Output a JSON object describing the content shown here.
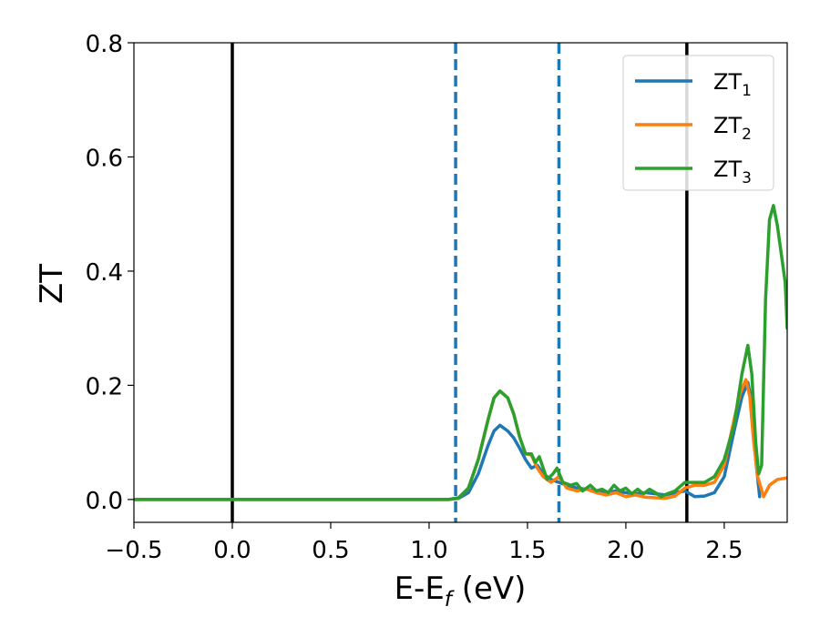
{
  "chart_data": {
    "type": "line",
    "title": "",
    "xlabel": "E-E",
    "xlabel_sub": "f",
    "xlabel_unit": " (eV)",
    "ylabel": "ZT",
    "xlim": [
      -0.5,
      2.82
    ],
    "ylim": [
      -0.04,
      0.8
    ],
    "xticks": [
      -0.5,
      0.0,
      0.5,
      1.0,
      1.5,
      2.0,
      2.5
    ],
    "xtick_labels": [
      "−0.5",
      "0.0",
      "0.5",
      "1.0",
      "1.5",
      "2.0",
      "2.5"
    ],
    "yticks": [
      0.0,
      0.2,
      0.4,
      0.6,
      0.8
    ],
    "ytick_labels": [
      "0.0",
      "0.2",
      "0.4",
      "0.6",
      "0.8"
    ],
    "grid": false,
    "legend_position": "top-right",
    "vertical_lines": [
      {
        "x": 0.0,
        "style": "solid",
        "color": "#000000"
      },
      {
        "x": 2.31,
        "style": "solid",
        "color": "#000000"
      },
      {
        "x": 1.135,
        "style": "dashed",
        "color": "#1f77b4"
      },
      {
        "x": 1.66,
        "style": "dashed",
        "color": "#1f77b4"
      }
    ],
    "series": [
      {
        "name": "ZT",
        "name_sub": "1",
        "color": "#1f77b4",
        "points": [
          [
            -0.5,
            0
          ],
          [
            1.1,
            0
          ],
          [
            1.15,
            0.002
          ],
          [
            1.2,
            0.012
          ],
          [
            1.25,
            0.045
          ],
          [
            1.3,
            0.095
          ],
          [
            1.33,
            0.12
          ],
          [
            1.36,
            0.13
          ],
          [
            1.4,
            0.12
          ],
          [
            1.43,
            0.108
          ],
          [
            1.46,
            0.09
          ],
          [
            1.49,
            0.07
          ],
          [
            1.52,
            0.055
          ],
          [
            1.55,
            0.06
          ],
          [
            1.58,
            0.045
          ],
          [
            1.62,
            0.035
          ],
          [
            1.66,
            0.03
          ],
          [
            1.7,
            0.025
          ],
          [
            1.75,
            0.02
          ],
          [
            1.8,
            0.018
          ],
          [
            1.85,
            0.015
          ],
          [
            1.9,
            0.012
          ],
          [
            1.95,
            0.015
          ],
          [
            2.0,
            0.012
          ],
          [
            2.05,
            0.01
          ],
          [
            2.1,
            0.012
          ],
          [
            2.15,
            0.01
          ],
          [
            2.2,
            0.008
          ],
          [
            2.25,
            0.012
          ],
          [
            2.3,
            0.015
          ],
          [
            2.35,
            0.005
          ],
          [
            2.4,
            0.006
          ],
          [
            2.45,
            0.012
          ],
          [
            2.5,
            0.04
          ],
          [
            2.55,
            0.12
          ],
          [
            2.59,
            0.18
          ],
          [
            2.62,
            0.205
          ],
          [
            2.64,
            0.17
          ],
          [
            2.66,
            0.07
          ],
          [
            2.68,
            0.005
          ]
        ]
      },
      {
        "name": "ZT",
        "name_sub": "2",
        "color": "#ff7f0e",
        "points": [
          [
            -0.5,
            0
          ],
          [
            1.1,
            0
          ],
          [
            1.15,
            0.003
          ],
          [
            1.2,
            0.02
          ],
          [
            1.25,
            0.07
          ],
          [
            1.3,
            0.14
          ],
          [
            1.33,
            0.178
          ],
          [
            1.36,
            0.19
          ],
          [
            1.4,
            0.178
          ],
          [
            1.43,
            0.15
          ],
          [
            1.46,
            0.11
          ],
          [
            1.49,
            0.08
          ],
          [
            1.52,
            0.078
          ],
          [
            1.55,
            0.055
          ],
          [
            1.58,
            0.04
          ],
          [
            1.62,
            0.03
          ],
          [
            1.66,
            0.04
          ],
          [
            1.7,
            0.02
          ],
          [
            1.75,
            0.015
          ],
          [
            1.8,
            0.018
          ],
          [
            1.85,
            0.012
          ],
          [
            1.9,
            0.008
          ],
          [
            1.95,
            0.012
          ],
          [
            2.0,
            0.005
          ],
          [
            2.05,
            0.008
          ],
          [
            2.1,
            0.004
          ],
          [
            2.15,
            0.003
          ],
          [
            2.2,
            0.002
          ],
          [
            2.25,
            0.006
          ],
          [
            2.3,
            0.02
          ],
          [
            2.35,
            0.025
          ],
          [
            2.4,
            0.025
          ],
          [
            2.45,
            0.03
          ],
          [
            2.5,
            0.06
          ],
          [
            2.55,
            0.14
          ],
          [
            2.58,
            0.185
          ],
          [
            2.61,
            0.21
          ],
          [
            2.63,
            0.18
          ],
          [
            2.65,
            0.1
          ],
          [
            2.67,
            0.04
          ],
          [
            2.7,
            0.005
          ],
          [
            2.73,
            0.025
          ],
          [
            2.77,
            0.035
          ],
          [
            2.82,
            0.038
          ]
        ]
      },
      {
        "name": "ZT",
        "name_sub": "3",
        "color": "#2ca02c",
        "points": [
          [
            -0.5,
            0
          ],
          [
            1.1,
            0
          ],
          [
            1.15,
            0.003
          ],
          [
            1.2,
            0.02
          ],
          [
            1.25,
            0.07
          ],
          [
            1.3,
            0.14
          ],
          [
            1.33,
            0.178
          ],
          [
            1.36,
            0.19
          ],
          [
            1.4,
            0.178
          ],
          [
            1.43,
            0.15
          ],
          [
            1.46,
            0.11
          ],
          [
            1.49,
            0.08
          ],
          [
            1.52,
            0.08
          ],
          [
            1.54,
            0.065
          ],
          [
            1.56,
            0.075
          ],
          [
            1.58,
            0.055
          ],
          [
            1.6,
            0.035
          ],
          [
            1.63,
            0.045
          ],
          [
            1.65,
            0.055
          ],
          [
            1.68,
            0.03
          ],
          [
            1.72,
            0.025
          ],
          [
            1.75,
            0.028
          ],
          [
            1.78,
            0.015
          ],
          [
            1.82,
            0.025
          ],
          [
            1.85,
            0.015
          ],
          [
            1.88,
            0.018
          ],
          [
            1.91,
            0.012
          ],
          [
            1.94,
            0.025
          ],
          [
            1.97,
            0.015
          ],
          [
            2.0,
            0.02
          ],
          [
            2.03,
            0.01
          ],
          [
            2.06,
            0.018
          ],
          [
            2.09,
            0.01
          ],
          [
            2.12,
            0.018
          ],
          [
            2.15,
            0.012
          ],
          [
            2.18,
            0.005
          ],
          [
            2.21,
            0.01
          ],
          [
            2.25,
            0.015
          ],
          [
            2.3,
            0.03
          ],
          [
            2.35,
            0.03
          ],
          [
            2.4,
            0.03
          ],
          [
            2.45,
            0.04
          ],
          [
            2.5,
            0.07
          ],
          [
            2.55,
            0.13
          ],
          [
            2.59,
            0.22
          ],
          [
            2.62,
            0.27
          ],
          [
            2.64,
            0.22
          ],
          [
            2.66,
            0.1
          ],
          [
            2.675,
            0.045
          ],
          [
            2.69,
            0.06
          ],
          [
            2.71,
            0.35
          ],
          [
            2.73,
            0.49
          ],
          [
            2.75,
            0.515
          ],
          [
            2.77,
            0.48
          ],
          [
            2.79,
            0.43
          ],
          [
            2.81,
            0.38
          ],
          [
            2.82,
            0.3
          ]
        ]
      }
    ]
  }
}
